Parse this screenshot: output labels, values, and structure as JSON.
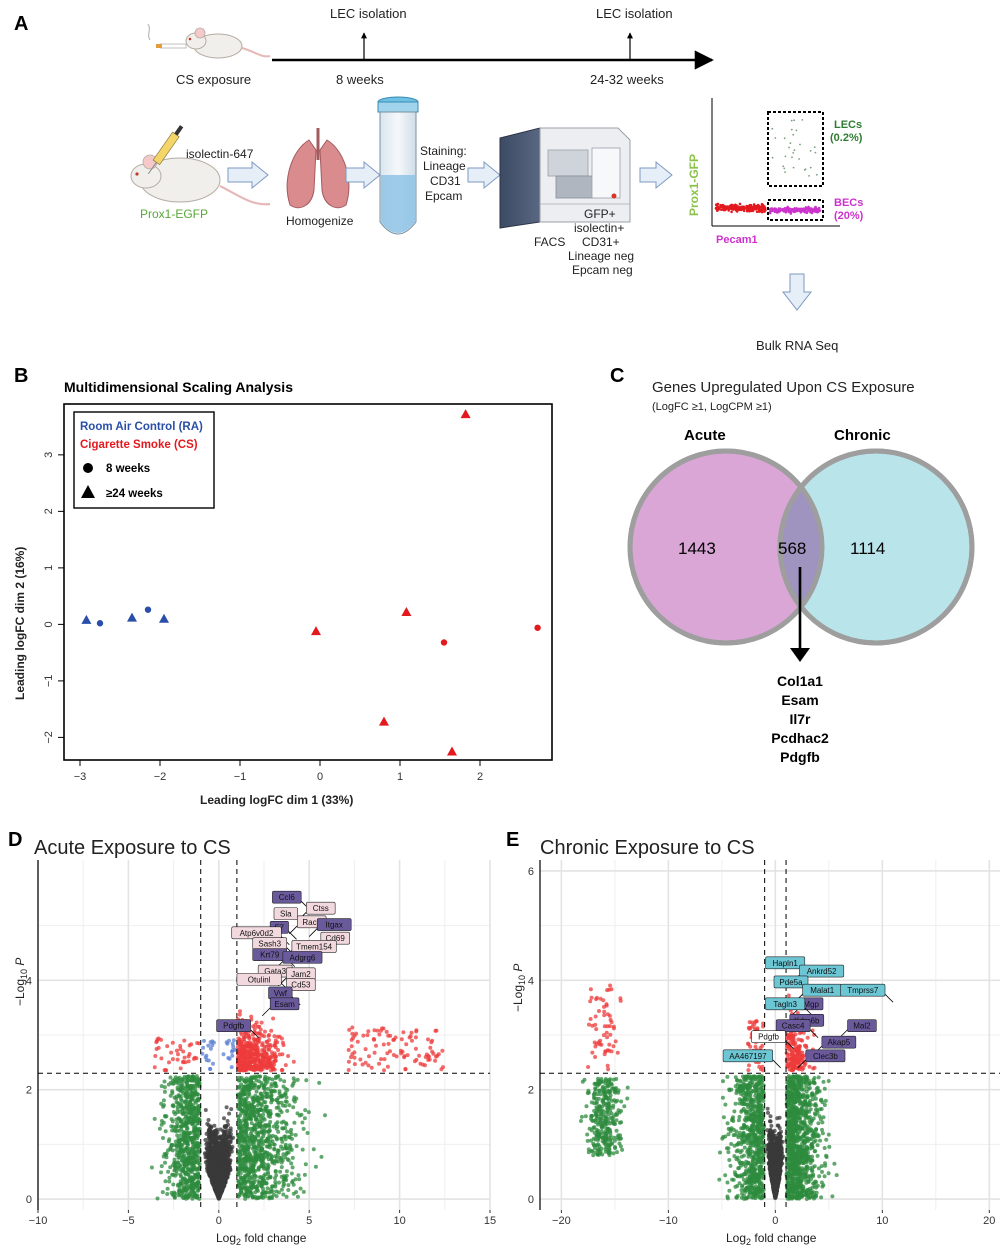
{
  "figure": {
    "panel_labels": [
      "A",
      "B",
      "C",
      "D",
      "E"
    ]
  },
  "panel_a": {
    "timeline": {
      "exposure_label": "CS exposure",
      "arrows": [
        {
          "top_label": "LEC isolation",
          "bottom_label": "8 weeks"
        },
        {
          "top_label": "LEC isolation",
          "bottom_label": "24-32 weeks"
        }
      ]
    },
    "mouse_label": "Prox1-EGFP",
    "injection_label": "isolectin-647",
    "lung_label": "Homogenize",
    "tube_label": [
      "Staining:",
      "Lineage",
      "CD31",
      "Epcam"
    ],
    "facs_label": "FACS",
    "gating_label": [
      "GFP+",
      "isolectin+",
      "CD31+",
      "Lineage neg",
      "Epcam neg"
    ],
    "flow_plot": {
      "y_axis": "Prox1-GFP",
      "x_axis": "Pecam1",
      "gate_top": [
        "LECs",
        "(0.2%)"
      ],
      "gate_bottom": [
        "BECs",
        "(20%)"
      ]
    },
    "final_step": "Bulk RNA Seq"
  },
  "colors": {
    "ra": "#2a4fa8",
    "cs": "#e3191e",
    "volcano_red": "#ee3b3b",
    "volcano_green": "#2e8b3e",
    "volcano_blue": "#5b7fd4",
    "volcano_grey": "#3a3a3a",
    "venn_left": "#d9a6d6",
    "venn_right": "#b8e4ea",
    "tag_light": "#f2d9de",
    "tag_dark": "#6a5a9c",
    "tag_cyan": "#6cc6d4",
    "lec_green": "#2e7d32",
    "bec_magenta": "#cc33cc",
    "gfp_green": "#8bc34a"
  },
  "chart_data": [
    {
      "id": "mds",
      "type": "scatter",
      "title": "Multidimensional Scaling Analysis",
      "xlabel": "Leading logFC dim 1 (33%)",
      "ylabel": "Leading logFC dim 2 (16%)",
      "xlim": [
        -3.2,
        2.9
      ],
      "ylim": [
        -2.4,
        3.9
      ],
      "xticks": [
        -3,
        -2,
        -1,
        0,
        1,
        2
      ],
      "yticks": [
        -2,
        -1,
        0,
        1,
        2,
        3
      ],
      "legend": {
        "groups": [
          "Room Air Control (RA)",
          "Cigarette Smoke (CS)"
        ],
        "shapes": [
          "8 weeks",
          "≥24 weeks"
        ],
        "placement": "top-left"
      },
      "points": [
        {
          "x": -2.92,
          "y": 0.08,
          "group": "RA",
          "shape": "triangle"
        },
        {
          "x": -2.75,
          "y": 0.02,
          "group": "RA",
          "shape": "circle"
        },
        {
          "x": -2.35,
          "y": 0.12,
          "group": "RA",
          "shape": "triangle"
        },
        {
          "x": -2.15,
          "y": 0.26,
          "group": "RA",
          "shape": "circle"
        },
        {
          "x": -1.95,
          "y": 0.1,
          "group": "RA",
          "shape": "triangle"
        },
        {
          "x": -0.05,
          "y": -0.12,
          "group": "CS",
          "shape": "triangle"
        },
        {
          "x": 1.08,
          "y": 0.22,
          "group": "CS",
          "shape": "triangle"
        },
        {
          "x": 1.55,
          "y": -0.32,
          "group": "CS",
          "shape": "circle"
        },
        {
          "x": 2.72,
          "y": -0.06,
          "group": "CS",
          "shape": "circle"
        },
        {
          "x": 1.82,
          "y": 3.72,
          "group": "CS",
          "shape": "triangle"
        },
        {
          "x": 0.8,
          "y": -1.72,
          "group": "CS",
          "shape": "triangle"
        },
        {
          "x": 1.65,
          "y": -2.25,
          "group": "CS",
          "shape": "triangle"
        }
      ]
    },
    {
      "id": "venn",
      "type": "venn",
      "title": "Genes Upregulated Upon CS Exposure",
      "subtitle": "(LogFC ≥1, LogCPM ≥1)",
      "sets": [
        {
          "name": "Acute",
          "only": 1443
        },
        {
          "name": "Chronic",
          "only": 1114
        }
      ],
      "overlap": 568,
      "overlap_genes": [
        "Col1a1",
        "Esam",
        "Il7r",
        "Pcdhac2",
        "Pdgfb"
      ]
    },
    {
      "id": "volcano_acute",
      "type": "scatter",
      "title": "Acute Exposure to CS",
      "xlabel": "Log2 fold change",
      "ylabel": "-Log10 P",
      "xlim": [
        -10,
        15
      ],
      "ylim": [
        -0.2,
        6.2
      ],
      "xticks": [
        -10,
        -5,
        0,
        5,
        10,
        15
      ],
      "yticks": [
        0,
        2,
        4
      ],
      "fc_cutoffs": [
        -1,
        1
      ],
      "p_cutoff": 2.3,
      "labeled_genes": [
        {
          "name": "Ccl6",
          "x": 5.0,
          "y": 5.3,
          "style": "dark"
        },
        {
          "name": "Ctss",
          "x": 4.4,
          "y": 5.1,
          "style": "light"
        },
        {
          "name": "Sla",
          "x": 4.8,
          "y": 5.0,
          "style": "light"
        },
        {
          "name": "Rac2",
          "x": 3.9,
          "y": 4.85,
          "style": "light"
        },
        {
          "name": "F7",
          "x": 4.3,
          "y": 4.75,
          "style": "dark"
        },
        {
          "name": "Itgax",
          "x": 5.0,
          "y": 4.8,
          "style": "dark"
        },
        {
          "name": "Atp6v0d2",
          "x": 3.9,
          "y": 4.65,
          "style": "light"
        },
        {
          "name": "Cd69",
          "x": 5.2,
          "y": 4.55,
          "style": "light"
        },
        {
          "name": "Sash3",
          "x": 4.2,
          "y": 4.45,
          "style": "light"
        },
        {
          "name": "Tmem154",
          "x": 3.6,
          "y": 4.4,
          "style": "light"
        },
        {
          "name": "Krt79",
          "x": 4.2,
          "y": 4.25,
          "style": "dark"
        },
        {
          "name": "Adgrg6",
          "x": 3.1,
          "y": 4.2,
          "style": "dark"
        },
        {
          "name": "Gata3",
          "x": 4.5,
          "y": 3.95,
          "style": "light"
        },
        {
          "name": "Jam2",
          "x": 3.3,
          "y": 3.9,
          "style": "light"
        },
        {
          "name": "Otulinl",
          "x": 3.9,
          "y": 3.8,
          "style": "light"
        },
        {
          "name": "Cd53",
          "x": 3.3,
          "y": 3.7,
          "style": "light"
        },
        {
          "name": "Vwf",
          "x": 4.5,
          "y": 3.55,
          "style": "dark"
        },
        {
          "name": "Esam",
          "x": 2.4,
          "y": 3.35,
          "style": "dark"
        },
        {
          "name": "Pdgfb",
          "x": 2.2,
          "y": 2.95,
          "style": "dark"
        }
      ]
    },
    {
      "id": "volcano_chronic",
      "type": "scatter",
      "title": "Chronic Exposure to CS",
      "xlabel": "Log2 fold change",
      "ylabel": "-Log10 P",
      "xlim": [
        -22,
        21
      ],
      "ylim": [
        -0.2,
        6.2
      ],
      "xticks": [
        -20,
        -10,
        0,
        10,
        20
      ],
      "yticks": [
        0,
        2,
        4,
        6
      ],
      "fc_cutoffs": [
        -1,
        1
      ],
      "p_cutoff": 2.3,
      "labeled_genes": [
        {
          "name": "Hapln1",
          "x": 3.5,
          "y": 4.1,
          "style": "cyan"
        },
        {
          "name": "Ankrd52",
          "x": 1.5,
          "y": 3.95,
          "style": "cyan"
        },
        {
          "name": "Pde5a",
          "x": 3.8,
          "y": 3.75,
          "style": "cyan"
        },
        {
          "name": "Malat1",
          "x": 1.8,
          "y": 3.6,
          "style": "cyan"
        },
        {
          "name": "Tmprss7",
          "x": 11.0,
          "y": 3.6,
          "style": "cyan"
        },
        {
          "name": "Mgp",
          "x": 1.5,
          "y": 3.35,
          "style": "dark"
        },
        {
          "name": "Tagln3",
          "x": 3.5,
          "y": 3.35,
          "style": "cyan"
        },
        {
          "name": "Kdm6b",
          "x": 0.6,
          "y": 3.05,
          "style": "dark"
        },
        {
          "name": "Casc4",
          "x": 4.0,
          "y": 2.95,
          "style": "dark"
        },
        {
          "name": "Mal2",
          "x": 6.0,
          "y": 2.95,
          "style": "dark"
        },
        {
          "name": "Pdgfb",
          "x": 1.7,
          "y": 2.75,
          "style": "white"
        },
        {
          "name": "Akap5",
          "x": 3.6,
          "y": 2.65,
          "style": "dark"
        },
        {
          "name": "AA467197",
          "x": 0.5,
          "y": 2.4,
          "style": "cyan"
        },
        {
          "name": "Clec3b",
          "x": 2.1,
          "y": 2.4,
          "style": "dark"
        }
      ]
    }
  ]
}
